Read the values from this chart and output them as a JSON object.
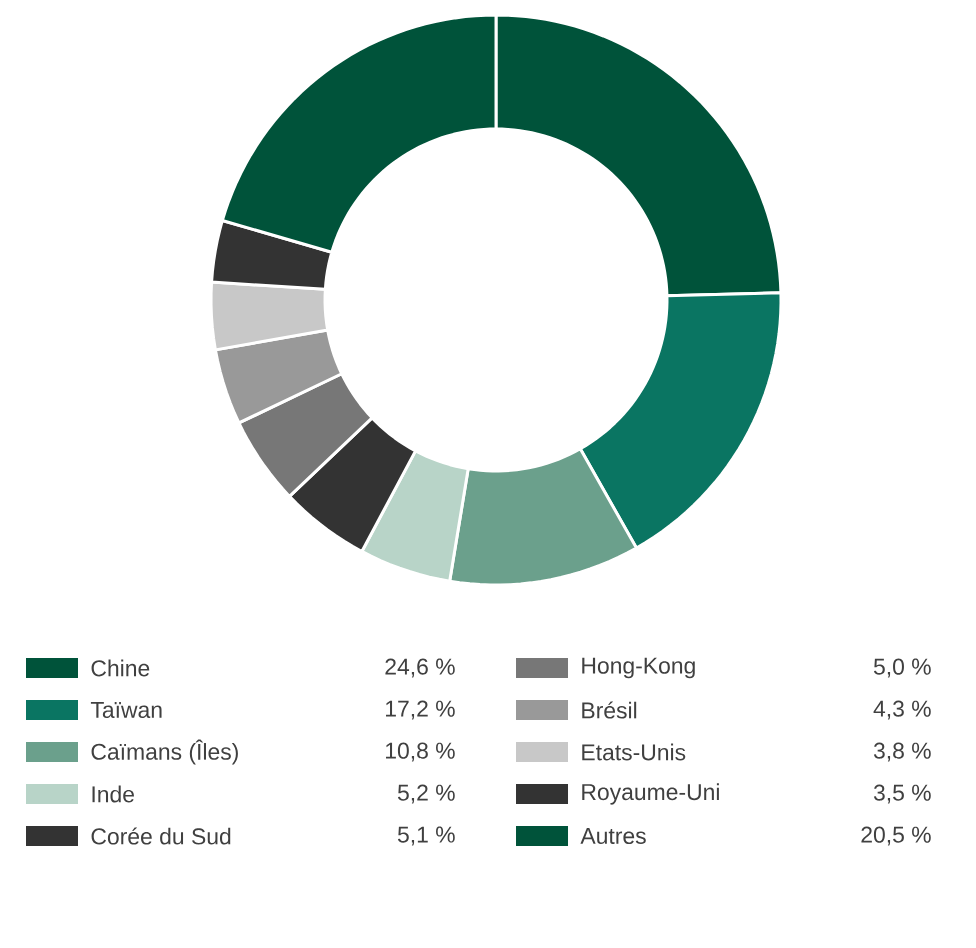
{
  "chart_data": {
    "type": "donut",
    "categories": [
      "Chine",
      "Taïwan",
      "Caïmans (Îles)",
      "Inde",
      "Corée du Sud",
      "Hong-Kong",
      "Brésil",
      "Etats-Unis",
      "Royaume-Uni",
      "Autres"
    ],
    "values": [
      24.6,
      17.2,
      10.8,
      5.2,
      5.1,
      5.0,
      4.3,
      3.8,
      3.5,
      20.5
    ],
    "value_labels": [
      "24,6 %",
      "17,2 %",
      "10,8 %",
      "5,2 %",
      "5,1 %",
      "5,0 %",
      "4,3 %",
      "3,8 %",
      "3,5 %",
      "20,5 %"
    ],
    "colors": [
      "#00533a",
      "#0a7562",
      "#6ba08c",
      "#b8d4c8",
      "#333333",
      "#777777",
      "#999999",
      "#c8c8c8",
      "#333333",
      "#00533a"
    ],
    "legend": "bottom"
  }
}
